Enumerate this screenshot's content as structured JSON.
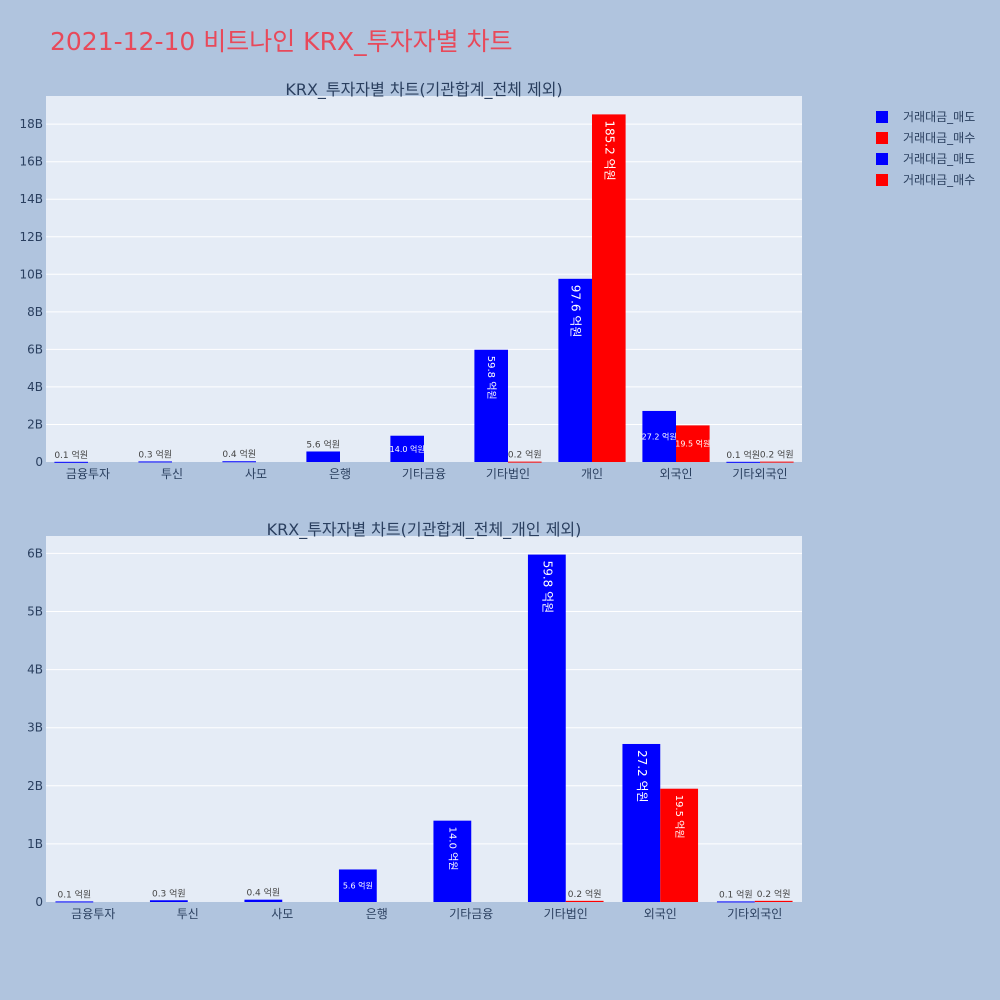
{
  "page": {
    "title": "2021-12-10 비트나인 KRX_투자자별 차트"
  },
  "legend": {
    "items": [
      {
        "label": "거래대금_매도",
        "color": "#0000ff"
      },
      {
        "label": "거래대금_매수",
        "color": "#ff0000"
      },
      {
        "label": "거래대금_매도",
        "color": "#0000ff"
      },
      {
        "label": "거래대금_매수",
        "color": "#ff0000"
      }
    ]
  },
  "chart_data": [
    {
      "type": "bar",
      "title": "KRX_투자자별 차트(기관합계_전체 제외)",
      "categories": [
        "금융투자",
        "투신",
        "사모",
        "은행",
        "기타금융",
        "기타법인",
        "개인",
        "외국인",
        "기타외국인"
      ],
      "ylim": [
        0,
        19500000000
      ],
      "yticks": [
        0,
        2000000000,
        4000000000,
        6000000000,
        8000000000,
        10000000000,
        12000000000,
        14000000000,
        16000000000,
        18000000000
      ],
      "ytick_labels": [
        "0",
        "2B",
        "4B",
        "6B",
        "8B",
        "10B",
        "12B",
        "14B",
        "16B",
        "18B"
      ],
      "grid": true,
      "series": [
        {
          "name": "거래대금_매도",
          "color": "#0000ff",
          "values": [
            10000000,
            30000000,
            40000000,
            560000000,
            1400000000,
            5980000000,
            9760000000,
            2720000000,
            10000000
          ],
          "labels": [
            "0.1 억원",
            "0.3 억원",
            "0.4 억원",
            "5.6 억원",
            "14.0 억원",
            "59.8 억원",
            "97.6 억원",
            "27.2 억원",
            "0.1 억원"
          ]
        },
        {
          "name": "거래대금_매수",
          "color": "#ff0000",
          "values": [
            0,
            0,
            0,
            0,
            0,
            20000000,
            18520000000,
            1950000000,
            20000000
          ],
          "labels": [
            "",
            "",
            "",
            "",
            "",
            "0.2 억원",
            "185.2 억원",
            "19.5 억원",
            "0.2 억원"
          ]
        }
      ]
    },
    {
      "type": "bar",
      "title": "KRX_투자자별 차트(기관합계_전체_개인 제외)",
      "categories": [
        "금융투자",
        "투신",
        "사모",
        "은행",
        "기타금융",
        "기타법인",
        "외국인",
        "기타외국인"
      ],
      "ylim": [
        0,
        6300000000
      ],
      "yticks": [
        0,
        1000000000,
        2000000000,
        3000000000,
        4000000000,
        5000000000,
        6000000000
      ],
      "ytick_labels": [
        "0",
        "1B",
        "2B",
        "3B",
        "4B",
        "5B",
        "6B"
      ],
      "grid": true,
      "series": [
        {
          "name": "거래대금_매도",
          "color": "#0000ff",
          "values": [
            10000000,
            30000000,
            40000000,
            560000000,
            1400000000,
            5980000000,
            2720000000,
            10000000
          ],
          "labels": [
            "0.1 억원",
            "0.3 억원",
            "0.4 억원",
            "5.6 억원",
            "14.0 억원",
            "59.8 억원",
            "27.2 억원",
            "0.1 억원"
          ]
        },
        {
          "name": "거래대금_매수",
          "color": "#ff0000",
          "values": [
            0,
            0,
            0,
            0,
            0,
            20000000,
            1950000000,
            20000000
          ],
          "labels": [
            "",
            "",
            "",
            "",
            "",
            "0.2 억원",
            "19.5 억원",
            "0.2 억원"
          ]
        }
      ]
    }
  ]
}
